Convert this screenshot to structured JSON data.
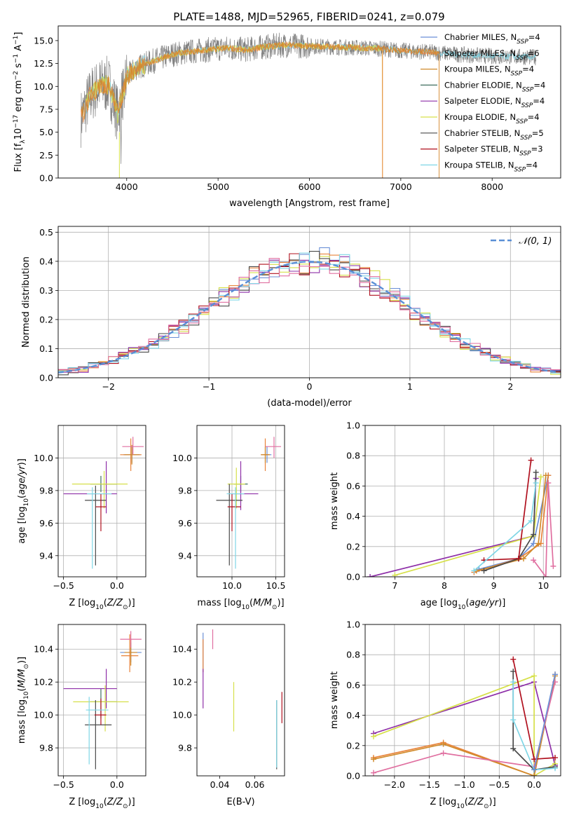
{
  "figure": {
    "title": "PLATE=1488, MJD=52965, FIBERID=0241, z=0.079"
  },
  "colors": {
    "Chabrier MILES": "#6a8fd6",
    "Salpeter MILES": "#e8833a",
    "Kroupa MILES": "#d08a2a",
    "Chabrier ELODIE": "#3f6f5f",
    "Salpeter ELODIE": "#8e2fa8",
    "Kroupa ELODIE": "#d6e04a",
    "Chabrier STELIB": "#4a4a4a",
    "Salpeter STELIB": "#b0101e",
    "Kroupa STELIB": "#7fd6e6",
    "data": "#808080",
    "normal": "#5a8fd6",
    "pink": "#e06fa0"
  },
  "chart_data": [
    {
      "type": "line",
      "id": "spectrum",
      "xlabel": "wavelength [Angstrom, rest frame]",
      "ylabel": "Flux [f_λ10^-17 erg cm^-2 s^-1 A^-1]",
      "xlim": [
        3250,
        8750
      ],
      "ylim": [
        0,
        16.6
      ],
      "xticks": [
        4000,
        5000,
        6000,
        7000,
        8000
      ],
      "yticks": [
        0.0,
        2.5,
        5.0,
        7.5,
        10.0,
        12.5,
        15.0
      ],
      "grid": false,
      "legend_position": "right",
      "continuum_points": [
        [
          3500,
          6.5
        ],
        [
          3600,
          9.0
        ],
        [
          3700,
          10.0
        ],
        [
          3800,
          10.2
        ],
        [
          3900,
          7.0
        ],
        [
          4000,
          11.0
        ],
        [
          4100,
          12.0
        ],
        [
          4300,
          12.8
        ],
        [
          4500,
          13.5
        ],
        [
          4700,
          13.8
        ],
        [
          4900,
          14.0
        ],
        [
          5100,
          14.2
        ],
        [
          5300,
          14.0
        ],
        [
          5500,
          14.3
        ],
        [
          5700,
          14.5
        ],
        [
          6000,
          14.4
        ],
        [
          6300,
          14.3
        ],
        [
          6600,
          14.2
        ],
        [
          6800,
          14.1
        ],
        [
          7000,
          13.9
        ],
        [
          7200,
          13.8
        ],
        [
          7400,
          13.7
        ],
        [
          7600,
          13.5
        ],
        [
          8000,
          13.3
        ],
        [
          8400,
          13.2
        ]
      ],
      "legend": [
        {
          "label": "Chabrier MILES",
          "nssp": "4"
        },
        {
          "label": "Salpeter MILES",
          "nssp": "6"
        },
        {
          "label": "Kroupa MILES",
          "nssp": "4"
        },
        {
          "label": "Chabrier ELODIE",
          "nssp": "4"
        },
        {
          "label": "Salpeter ELODIE",
          "nssp": "4"
        },
        {
          "label": "Kroupa ELODIE",
          "nssp": "4"
        },
        {
          "label": "Chabrier STELIB",
          "nssp": "5"
        },
        {
          "label": "Salpeter STELIB",
          "nssp": "3"
        },
        {
          "label": "Kroupa STELIB",
          "nssp": "4"
        }
      ]
    },
    {
      "type": "line",
      "id": "residuals",
      "xlabel": "(data-model)/error",
      "ylabel": "Normed distribution",
      "xlim": [
        -2.5,
        2.5
      ],
      "ylim": [
        0,
        0.52
      ],
      "xticks": [
        -2,
        -1,
        0,
        1,
        2
      ],
      "yticks": [
        0.0,
        0.1,
        0.2,
        0.3,
        0.4,
        0.5
      ],
      "grid": true,
      "legend": [
        {
          "label": "𝒩(0, 1)"
        }
      ],
      "legend_position": "top-right"
    },
    {
      "type": "scatter",
      "id": "age_vs_Z",
      "xlabel": "Z [log10(Z/Z⊙)]",
      "ylabel": "age [log10(age/yr)]",
      "xlim": [
        -0.55,
        0.27
      ],
      "ylim": [
        9.27,
        10.2
      ],
      "xticks": [
        -0.5,
        0.0
      ],
      "yticks": [
        9.4,
        9.6,
        9.8,
        10.0
      ],
      "grid": true,
      "points": [
        {
          "series": "Chabrier MILES",
          "x": 0.14,
          "y": 10.02,
          "xerr": [
            0.08,
            0.08
          ],
          "yerr": [
            0.05,
            0.05
          ]
        },
        {
          "series": "Salpeter MILES",
          "x": 0.13,
          "y": 10.02,
          "xerr": [
            0.1,
            0.1
          ],
          "yerr": [
            0.1,
            0.1
          ]
        },
        {
          "series": "Kroupa MILES",
          "x": 0.14,
          "y": 10.02,
          "xerr": [
            0.07,
            0.07
          ],
          "yerr": [
            0.06,
            0.06
          ]
        },
        {
          "series": "Chabrier ELODIE",
          "x": -0.15,
          "y": 9.84,
          "xerr": [
            0.1,
            0.15
          ],
          "yerr": [
            0.05,
            0.05
          ]
        },
        {
          "series": "Salpeter ELODIE",
          "x": -0.1,
          "y": 9.78,
          "xerr": [
            0.4,
            0.1
          ],
          "yerr": [
            0.12,
            0.2
          ]
        },
        {
          "series": "Kroupa ELODIE",
          "x": -0.12,
          "y": 9.84,
          "xerr": [
            0.3,
            0.22
          ],
          "yerr": [
            0.15,
            0.08
          ]
        },
        {
          "series": "Chabrier STELIB",
          "x": -0.2,
          "y": 9.74,
          "xerr": [
            0.1,
            0.1
          ],
          "yerr": [
            0.4,
            0.09
          ]
        },
        {
          "series": "Salpeter STELIB",
          "x": -0.15,
          "y": 9.7,
          "xerr": [
            0.05,
            0.05
          ],
          "yerr": [
            0.15,
            0.08
          ]
        },
        {
          "series": "Kroupa STELIB",
          "x": -0.23,
          "y": 9.78,
          "xerr": [
            0.05,
            0.18
          ],
          "yerr": [
            0.46,
            0.04
          ]
        },
        {
          "series": "pink",
          "x": 0.15,
          "y": 10.07,
          "xerr": [
            0.1,
            0.1
          ],
          "yerr": [
            0.05,
            0.06
          ]
        }
      ]
    },
    {
      "type": "scatter",
      "id": "age_vs_mass",
      "xlabel": "mass [log10(M/M⊙)]",
      "ylabel": "",
      "xlim": [
        9.6,
        10.6
      ],
      "ylim": [
        9.27,
        10.2
      ],
      "xticks": [
        10.0,
        10.5
      ],
      "yticks": [
        9.4,
        9.6,
        9.8,
        10.0
      ],
      "grid": true,
      "points": [
        {
          "series": "Chabrier MILES",
          "x": 10.4,
          "y": 10.02,
          "xerr": [
            0.05,
            0.05
          ],
          "yerr": [
            0.05,
            0.05
          ]
        },
        {
          "series": "Salpeter MILES",
          "x": 10.38,
          "y": 10.02,
          "xerr": [
            0.05,
            0.05
          ],
          "yerr": [
            0.1,
            0.1
          ]
        },
        {
          "series": "Kroupa MILES",
          "x": 10.38,
          "y": 10.02,
          "xerr": [
            0.05,
            0.05
          ],
          "yerr": [
            0.05,
            0.05
          ]
        },
        {
          "series": "Chabrier ELODIE",
          "x": 10.1,
          "y": 9.84,
          "xerr": [
            0.08,
            0.08
          ],
          "yerr": [
            0.05,
            0.05
          ]
        },
        {
          "series": "Salpeter ELODIE",
          "x": 10.1,
          "y": 9.78,
          "xerr": [
            0.1,
            0.2
          ],
          "yerr": [
            0.1,
            0.2
          ]
        },
        {
          "series": "Kroupa ELODIE",
          "x": 10.05,
          "y": 9.84,
          "xerr": [
            0.1,
            0.1
          ],
          "yerr": [
            0.15,
            0.1
          ]
        },
        {
          "series": "Chabrier STELIB",
          "x": 9.97,
          "y": 9.74,
          "xerr": [
            0.15,
            0.15
          ],
          "yerr": [
            0.4,
            0.1
          ]
        },
        {
          "series": "Salpeter STELIB",
          "x": 10.0,
          "y": 9.7,
          "xerr": [
            0.05,
            0.1
          ],
          "yerr": [
            0.15,
            0.08
          ]
        },
        {
          "series": "Kroupa STELIB",
          "x": 10.04,
          "y": 9.78,
          "xerr": [
            0.1,
            0.1
          ],
          "yerr": [
            0.46,
            0.04
          ]
        },
        {
          "series": "pink",
          "x": 10.48,
          "y": 10.07,
          "xerr": [
            0.1,
            0.08
          ],
          "yerr": [
            0.07,
            0.06
          ]
        }
      ]
    },
    {
      "type": "line",
      "id": "mass_weight_vs_age",
      "xlabel": "age [log10(age/yr)]",
      "ylabel": "mass weight",
      "xlim": [
        6.4,
        10.35
      ],
      "ylim": [
        0,
        1.0
      ],
      "xticks": [
        7,
        8,
        9,
        10
      ],
      "yticks": [
        0.0,
        0.2,
        0.4,
        0.6,
        0.8,
        1.0
      ],
      "grid": true,
      "series": [
        {
          "name": "Chabrier MILES",
          "x": [
            8.7,
            9.5,
            9.8,
            10.1
          ],
          "y": [
            0.05,
            0.12,
            0.22,
            0.67
          ]
        },
        {
          "name": "Salpeter MILES",
          "x": [
            8.6,
            9.5,
            9.95,
            10.1
          ],
          "y": [
            0.03,
            0.12,
            0.22,
            0.67
          ]
        },
        {
          "name": "Kroupa MILES",
          "x": [
            8.65,
            9.6,
            9.9,
            10.05
          ],
          "y": [
            0.04,
            0.12,
            0.22,
            0.67
          ]
        },
        {
          "name": "Salpeter ELODIE",
          "x": [
            6.5,
            9.8,
            9.85
          ],
          "y": [
            0.0,
            0.27,
            0.65
          ]
        },
        {
          "name": "Kroupa ELODIE",
          "x": [
            7.0,
            9.8,
            9.95
          ],
          "y": [
            0.01,
            0.27,
            0.66
          ]
        },
        {
          "name": "Chabrier STELIB",
          "x": [
            8.8,
            9.5,
            9.8,
            9.85
          ],
          "y": [
            0.04,
            0.12,
            0.28,
            0.69
          ]
        },
        {
          "name": "Salpeter STELIB",
          "x": [
            8.8,
            9.5,
            9.75
          ],
          "y": [
            0.11,
            0.12,
            0.77
          ]
        },
        {
          "name": "Kroupa STELIB",
          "x": [
            8.6,
            9.75,
            9.85
          ],
          "y": [
            0.04,
            0.37,
            0.62
          ]
        },
        {
          "name": "pink",
          "x": [
            9.8,
            10.05,
            10.1,
            10.2
          ],
          "y": [
            0.11,
            0.0,
            0.62,
            0.07
          ]
        }
      ]
    },
    {
      "type": "scatter",
      "id": "mass_vs_Z",
      "xlabel": "Z [log10(Z/Z⊙)]",
      "ylabel": "mass [log10(M/M⊙)]",
      "xlim": [
        -0.55,
        0.27
      ],
      "ylim": [
        9.63,
        10.55
      ],
      "xticks": [
        -0.5,
        0.0
      ],
      "yticks": [
        9.8,
        10.0,
        10.2,
        10.4
      ],
      "grid": true,
      "points": [
        {
          "series": "Chabrier MILES",
          "x": 0.13,
          "y": 10.38,
          "xerr": [
            0.1,
            0.1
          ],
          "yerr": [
            0.06,
            0.06
          ]
        },
        {
          "series": "Salpeter MILES",
          "x": 0.12,
          "y": 10.36,
          "xerr": [
            0.08,
            0.08
          ],
          "yerr": [
            0.1,
            0.13
          ]
        },
        {
          "series": "Kroupa MILES",
          "x": 0.13,
          "y": 10.38,
          "xerr": [
            0.06,
            0.06
          ],
          "yerr": [
            0.08,
            0.08
          ]
        },
        {
          "series": "Chabrier ELODIE",
          "x": -0.15,
          "y": 10.08,
          "xerr": [
            0.1,
            0.15
          ],
          "yerr": [
            0.1,
            0.08
          ]
        },
        {
          "series": "Salpeter ELODIE",
          "x": -0.1,
          "y": 10.16,
          "xerr": [
            0.4,
            0.1
          ],
          "yerr": [
            0.12,
            0.12
          ]
        },
        {
          "series": "Kroupa ELODIE",
          "x": -0.11,
          "y": 10.08,
          "xerr": [
            0.3,
            0.22
          ],
          "yerr": [
            0.18,
            0.1
          ]
        },
        {
          "series": "Chabrier STELIB",
          "x": -0.2,
          "y": 9.94,
          "xerr": [
            0.1,
            0.15
          ],
          "yerr": [
            0.27,
            0.15
          ]
        },
        {
          "series": "Salpeter STELIB",
          "x": -0.15,
          "y": 10.0,
          "xerr": [
            0.06,
            0.05
          ],
          "yerr": [
            0.06,
            0.1
          ]
        },
        {
          "series": "Kroupa STELIB",
          "x": -0.26,
          "y": 10.03,
          "xerr": [
            0.03,
            0.18
          ],
          "yerr": [
            0.33,
            0.08
          ]
        },
        {
          "series": "pink",
          "x": 0.13,
          "y": 10.46,
          "xerr": [
            0.1,
            0.1
          ],
          "yerr": [
            0.05,
            0.05
          ]
        }
      ]
    },
    {
      "type": "scatter",
      "id": "mass_vs_ebv",
      "xlabel": "E(B-V)",
      "ylabel": "",
      "xlim": [
        0.027,
        0.077
      ],
      "ylim": [
        9.63,
        10.55
      ],
      "xticks": [
        0.04,
        0.06
      ],
      "yticks": [
        9.8,
        10.0,
        10.2,
        10.4
      ],
      "grid": false,
      "points": [
        {
          "series": "Chabrier MILES",
          "x": 0.0305,
          "y": 10.38,
          "xerr": [
            0,
            0
          ],
          "yerr": [
            0.12,
            0.12
          ]
        },
        {
          "series": "Salpeter MILES",
          "x": 0.0305,
          "y": 10.36,
          "xerr": [
            0,
            0
          ],
          "yerr": [
            0.1,
            0.1
          ]
        },
        {
          "series": "Salpeter ELODIE",
          "x": 0.0305,
          "y": 10.16,
          "xerr": [
            0,
            0
          ],
          "yerr": [
            0.12,
            0.12
          ]
        },
        {
          "series": "pink",
          "x": 0.036,
          "y": 10.46,
          "xerr": [
            0,
            0
          ],
          "yerr": [
            0.06,
            0.06
          ]
        },
        {
          "series": "Kroupa ELODIE",
          "x": 0.048,
          "y": 10.08,
          "xerr": [
            0,
            0
          ],
          "yerr": [
            0.18,
            0.12
          ]
        },
        {
          "series": "Chabrier STELIB",
          "x": 0.0725,
          "y": 9.94,
          "xerr": [
            0,
            0
          ],
          "yerr": [
            0.27,
            0.15
          ]
        },
        {
          "series": "Kroupa STELIB",
          "x": 0.0725,
          "y": 9.95,
          "xerr": [
            0,
            0
          ],
          "yerr": [
            0.27,
            0.14
          ]
        },
        {
          "series": "Salpeter STELIB",
          "x": 0.0755,
          "y": 10.05,
          "xerr": [
            0,
            0
          ],
          "yerr": [
            0.1,
            0.09
          ]
        }
      ]
    },
    {
      "type": "line",
      "id": "mass_weight_vs_Z",
      "xlabel": "Z [log10(Z/Z⊙)]",
      "ylabel": "mass weight",
      "xlim": [
        -2.42,
        0.38
      ],
      "ylim": [
        0,
        1.0
      ],
      "xticks": [
        -2.0,
        -1.5,
        -1.0,
        -0.5,
        0.0
      ],
      "yticks": [
        0.0,
        0.2,
        0.4,
        0.6,
        0.8,
        1.0
      ],
      "grid": true,
      "series": [
        {
          "name": "Salpeter ELODIE",
          "x": [
            -2.3,
            0.0,
            0.3
          ],
          "y": [
            0.28,
            0.62,
            0.07
          ]
        },
        {
          "name": "Kroupa ELODIE",
          "x": [
            -2.3,
            0.0,
            0.0,
            0.3
          ],
          "y": [
            0.26,
            0.66,
            0.0,
            0.08
          ]
        },
        {
          "name": "Salpeter MILES",
          "x": [
            -2.3,
            -1.3,
            0.0,
            0.3
          ],
          "y": [
            0.12,
            0.22,
            0.0,
            0.67
          ]
        },
        {
          "name": "Kroupa MILES",
          "x": [
            -2.3,
            -1.3,
            0.0,
            0.3
          ],
          "y": [
            0.11,
            0.21,
            0.0,
            0.66
          ]
        },
        {
          "name": "pink",
          "x": [
            -2.3,
            -1.3,
            0.0,
            0.3
          ],
          "y": [
            0.02,
            0.15,
            0.06,
            0.62
          ]
        },
        {
          "name": "Chabrier STELIB",
          "x": [
            -0.3,
            -0.3,
            0.0,
            0.3
          ],
          "y": [
            0.69,
            0.18,
            0.04,
            0.06
          ]
        },
        {
          "name": "Salpeter STELIB",
          "x": [
            -0.3,
            0.0,
            0.3
          ],
          "y": [
            0.77,
            0.11,
            0.12
          ]
        },
        {
          "name": "Kroupa STELIB",
          "x": [
            -0.3,
            -0.3,
            0.0,
            0.3
          ],
          "y": [
            0.62,
            0.37,
            0.04,
            0.05
          ]
        },
        {
          "name": "Chabrier MILES",
          "x": [
            0.0,
            0.3
          ],
          "y": [
            0.04,
            0.67
          ]
        }
      ]
    }
  ]
}
